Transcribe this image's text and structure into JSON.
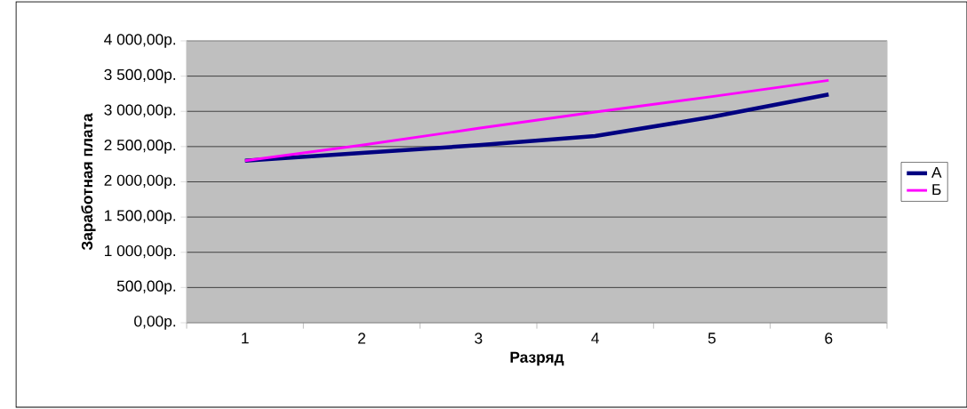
{
  "chart_data": {
    "type": "line",
    "xlabel": "Разряд",
    "ylabel": "Заработная плата",
    "categories": [
      "1",
      "2",
      "3",
      "4",
      "5",
      "6"
    ],
    "series": [
      {
        "name": "А",
        "color": "#000080",
        "values": [
          2300,
          2410,
          2520,
          2650,
          2920,
          3240
        ]
      },
      {
        "name": "Б",
        "color": "#ff00ff",
        "values": [
          2300,
          2520,
          2760,
          2990,
          3210,
          3440
        ]
      }
    ],
    "ylim": [
      0,
      4000
    ],
    "yticks": [
      {
        "value": 0,
        "label": "0,00р."
      },
      {
        "value": 500,
        "label": "500,00р."
      },
      {
        "value": 1000,
        "label": "1 000,00р."
      },
      {
        "value": 1500,
        "label": "1 500,00р."
      },
      {
        "value": 2000,
        "label": "2 000,00р."
      },
      {
        "value": 2500,
        "label": "2 500,00р."
      },
      {
        "value": 3000,
        "label": "3 000,00р."
      },
      {
        "value": 3500,
        "label": "3 500,00р."
      },
      {
        "value": 4000,
        "label": "4 000,00р."
      }
    ],
    "grid": "y",
    "legend": "right",
    "marker": "none",
    "line_style": "solid"
  }
}
